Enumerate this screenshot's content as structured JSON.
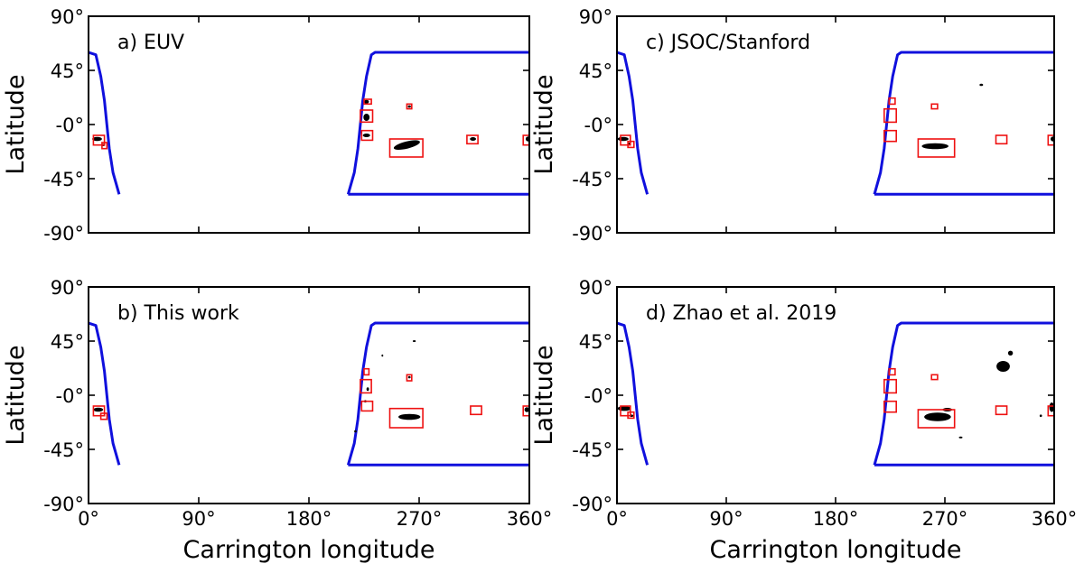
{
  "chart_data": {
    "type": "scatter",
    "x_axis": {
      "label": "Carrington longitude",
      "range": [
        0,
        360
      ],
      "ticks": [
        0,
        90,
        180,
        270,
        360
      ],
      "tick_labels": [
        "0°",
        "90°",
        "180°",
        "270°",
        "360°"
      ]
    },
    "y_axis": {
      "label": "Latitude",
      "range": [
        -90,
        90
      ],
      "ticks": [
        -90,
        -45,
        0,
        45,
        90
      ],
      "tick_labels": [
        "-90°",
        "-45°",
        "-0°",
        "45°",
        "90°"
      ]
    },
    "colors": {
      "boundary": "#1010dd",
      "box": "#ee1111",
      "region": "#000000"
    },
    "boundary_curves": [
      {
        "name": "left-boundary",
        "points": [
          [
            0,
            60
          ],
          [
            6,
            58
          ],
          [
            10,
            40
          ],
          [
            13,
            20
          ],
          [
            15,
            0
          ],
          [
            17,
            -20
          ],
          [
            20,
            -40
          ],
          [
            25,
            -58
          ]
        ]
      },
      {
        "name": "right-boundary",
        "points": [
          [
            212,
            -58
          ],
          [
            217,
            -40
          ],
          [
            220,
            -20
          ],
          [
            222,
            0
          ],
          [
            224,
            20
          ],
          [
            227,
            40
          ],
          [
            231,
            58
          ],
          [
            234,
            60
          ],
          [
            360,
            60
          ]
        ]
      },
      {
        "name": "bottom-boundary",
        "points": [
          [
            212,
            -58
          ],
          [
            360,
            -58
          ]
        ]
      }
    ],
    "panels": [
      {
        "id": "a",
        "label": "a) EUV",
        "boxes": [
          [
            225,
            17,
            231,
            21
          ],
          [
            222,
            2,
            232,
            12
          ],
          [
            223,
            -13,
            232,
            -5
          ],
          [
            246,
            -27,
            273,
            -12
          ],
          [
            260,
            13,
            264,
            17
          ],
          [
            309,
            -16,
            318,
            -9
          ],
          [
            355,
            -17,
            362,
            -9
          ],
          [
            4,
            -17,
            13,
            -9
          ],
          [
            11,
            -20,
            15,
            -15
          ]
        ],
        "regions": [
          {
            "lon": 227,
            "lat": 19,
            "w": 4,
            "h": 3
          },
          {
            "lon": 227,
            "lat": 6,
            "w": 5,
            "h": 6
          },
          {
            "lon": 227,
            "lat": -9,
            "w": 6,
            "h": 3
          },
          {
            "lon": 260,
            "lat": -17,
            "w": 22,
            "h": 6,
            "rot": -14
          },
          {
            "lon": 262,
            "lat": 15,
            "w": 2.5,
            "h": 2
          },
          {
            "lon": 314,
            "lat": -12,
            "w": 5,
            "h": 3
          },
          {
            "lon": 359,
            "lat": -12,
            "w": 4,
            "h": 4
          },
          {
            "lon": 7,
            "lat": -12,
            "w": 8,
            "h": 3.5
          },
          {
            "lon": 12,
            "lat": -17,
            "w": 2.5,
            "h": 2
          }
        ]
      },
      {
        "id": "c",
        "label": "c) JSOC/Stanford",
        "boxes": [
          [
            224,
            17,
            229,
            22
          ],
          [
            220,
            2,
            230,
            13
          ],
          [
            220,
            -14,
            230,
            -5
          ],
          [
            248,
            -27,
            278,
            -12
          ],
          [
            259,
            13,
            264,
            17
          ],
          [
            312,
            -16,
            321,
            -9
          ],
          [
            355,
            -17,
            362,
            -9
          ],
          [
            3,
            -17,
            11,
            -9
          ],
          [
            9,
            -19,
            14,
            -14
          ]
        ],
        "regions": [
          {
            "lon": 262,
            "lat": -18,
            "w": 22,
            "h": 5
          },
          {
            "lon": 300,
            "lat": 33,
            "w": 3,
            "h": 2
          },
          {
            "lon": 359,
            "lat": -12,
            "w": 4,
            "h": 4
          },
          {
            "lon": 5,
            "lat": -12,
            "w": 9,
            "h": 3.5
          },
          {
            "lon": 10,
            "lat": -16,
            "w": 2.5,
            "h": 2
          }
        ]
      },
      {
        "id": "b",
        "label": "b) This work",
        "boxes": [
          [
            225,
            17,
            229,
            22
          ],
          [
            222,
            2,
            231,
            13
          ],
          [
            223,
            -13,
            232,
            -5
          ],
          [
            246,
            -27,
            273,
            -11
          ],
          [
            260,
            12,
            264,
            17
          ],
          [
            312,
            -16,
            321,
            -9
          ],
          [
            355,
            -17,
            362,
            -9
          ],
          [
            4,
            -17,
            13,
            -9
          ],
          [
            10,
            -20,
            15,
            -15
          ]
        ],
        "regions": [
          {
            "lon": 262,
            "lat": -18,
            "w": 18,
            "h": 5
          },
          {
            "lon": 240,
            "lat": 33,
            "w": 1.5,
            "h": 2
          },
          {
            "lon": 266,
            "lat": 45,
            "w": 2.5,
            "h": 1.5
          },
          {
            "lon": 228,
            "lat": 5,
            "w": 2,
            "h": 3
          },
          {
            "lon": 226,
            "lat": -5,
            "w": 2,
            "h": 2
          },
          {
            "lon": 218,
            "lat": -30,
            "w": 2,
            "h": 2
          },
          {
            "lon": 262,
            "lat": 15,
            "w": 2,
            "h": 2
          },
          {
            "lon": 358,
            "lat": -12,
            "w": 4,
            "h": 4
          },
          {
            "lon": 8,
            "lat": -12,
            "w": 8,
            "h": 3.5
          }
        ]
      },
      {
        "id": "d",
        "label": "d) Zhao et al. 2019",
        "boxes": [
          [
            224,
            17,
            229,
            22
          ],
          [
            220,
            2,
            230,
            13
          ],
          [
            220,
            -14,
            230,
            -5
          ],
          [
            248,
            -27,
            278,
            -12
          ],
          [
            259,
            13,
            264,
            17
          ],
          [
            312,
            -16,
            321,
            -9
          ],
          [
            355,
            -17,
            362,
            -9
          ],
          [
            3,
            -17,
            11,
            -9
          ],
          [
            9,
            -19,
            14,
            -14
          ]
        ],
        "regions": [
          {
            "lon": 264,
            "lat": -18,
            "w": 22,
            "h": 7
          },
          {
            "lon": 272,
            "lat": -12,
            "w": 8,
            "h": 3
          },
          {
            "lon": 318,
            "lat": 24,
            "w": 11,
            "h": 9
          },
          {
            "lon": 324,
            "lat": 35,
            "w": 4,
            "h": 4
          },
          {
            "lon": 283,
            "lat": -35,
            "w": 3,
            "h": 1.5
          },
          {
            "lon": 358,
            "lat": -10,
            "w": 4,
            "h": 8
          },
          {
            "lon": 349,
            "lat": -17,
            "w": 2,
            "h": 2
          },
          {
            "lon": 6,
            "lat": -11,
            "w": 11,
            "h": 4
          },
          {
            "lon": 12,
            "lat": -17,
            "w": 3,
            "h": 2
          }
        ]
      }
    ]
  }
}
